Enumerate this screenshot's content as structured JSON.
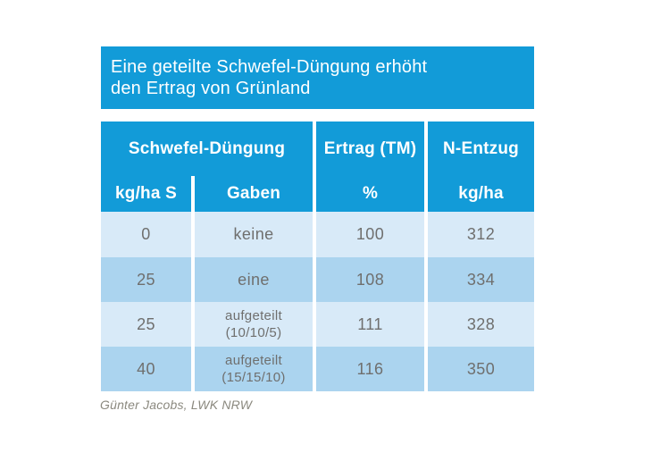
{
  "title": {
    "line1": "Eine geteilte Schwefel-Düngung erhöht",
    "line2": "den Ertrag von Grünland"
  },
  "table": {
    "header": {
      "group": "Schwefel-Düngung",
      "ertrag": "Ertrag (TM)",
      "n_entzug": "N-Entzug"
    },
    "subheader": {
      "kg_ha_s": "kg/ha S",
      "gaben": "Gaben",
      "percent": "%",
      "kg_ha": "kg/ha"
    },
    "rows": [
      {
        "dose": "0",
        "gaben1": "keine",
        "gaben2": "",
        "yield": "100",
        "n_removal": "312"
      },
      {
        "dose": "25",
        "gaben1": "eine",
        "gaben2": "",
        "yield": "108",
        "n_removal": "334"
      },
      {
        "dose": "25",
        "gaben1": "aufgeteilt",
        "gaben2": "(10/10/5)",
        "yield": "111",
        "n_removal": "328"
      },
      {
        "dose": "40",
        "gaben1": "aufgeteilt",
        "gaben2": "(15/15/10)",
        "yield": "116",
        "n_removal": "350"
      }
    ]
  },
  "source": "Günter Jacobs, LWK NRW",
  "colors": {
    "primary_blue": "#129bd8",
    "row_light": "#d8eaf8",
    "row_medium": "#abd4ef",
    "header_text": "#ffffff",
    "cell_text": "#6f6f6e",
    "source_text": "#8b897f"
  },
  "chart_data": {
    "type": "table",
    "title": "Eine geteilte Schwefel-Düngung erhöht den Ertrag von Grünland",
    "columns": [
      "Schwefel-Düngung kg/ha S",
      "Schwefel-Düngung Gaben",
      "Ertrag (TM) %",
      "N-Entzug kg/ha"
    ],
    "rows": [
      [
        0,
        "keine",
        100,
        312
      ],
      [
        25,
        "eine",
        108,
        334
      ],
      [
        25,
        "aufgeteilt (10/10/5)",
        111,
        328
      ],
      [
        40,
        "aufgeteilt (15/15/10)",
        116,
        350
      ]
    ],
    "source": "Günter Jacobs, LWK NRW"
  }
}
